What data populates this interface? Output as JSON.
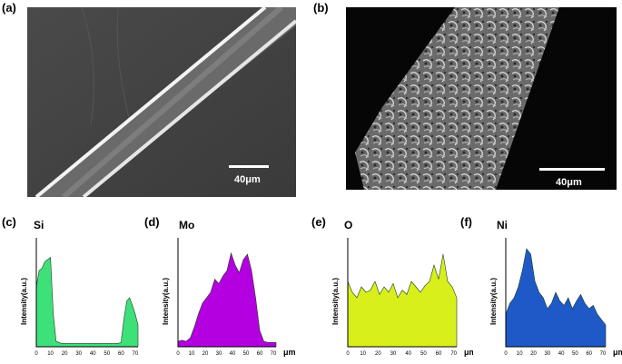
{
  "panels": {
    "a": {
      "label": "(a)",
      "scale_bar": "40μm"
    },
    "b": {
      "label": "(b)",
      "scale_bar": "40μm"
    },
    "c": {
      "label": "(c)",
      "element": "Si",
      "color": "#3ee07a"
    },
    "d": {
      "label": "(d)",
      "element": "Mo",
      "color": "#b400e0"
    },
    "e": {
      "label": "(e)",
      "element": "O",
      "color": "#d8ef1c"
    },
    "f": {
      "label": "(f)",
      "element": "Ni",
      "color": "#1f59c8"
    }
  },
  "chart_data": [
    {
      "type": "area",
      "ylabel": "Intensity(a.u.)",
      "xlabel": "μm",
      "x_ticks": [
        "0",
        "10",
        "20",
        "30",
        "40",
        "50",
        "60",
        "70"
      ],
      "xlim": [
        0,
        72
      ],
      "ylim": [
        0,
        1
      ],
      "x": [
        0,
        2,
        4,
        6,
        8,
        10,
        12,
        14,
        16,
        18,
        20,
        25,
        30,
        35,
        40,
        45,
        50,
        55,
        58,
        60,
        62,
        64,
        66,
        68,
        70,
        72
      ],
      "values": [
        0.55,
        0.7,
        0.72,
        0.78,
        0.8,
        0.82,
        0.3,
        0.05,
        0.04,
        0.03,
        0.03,
        0.03,
        0.03,
        0.03,
        0.03,
        0.03,
        0.03,
        0.03,
        0.03,
        0.04,
        0.25,
        0.42,
        0.45,
        0.38,
        0.3,
        0.2
      ]
    },
    {
      "type": "area",
      "ylabel": "Intensity(a.u.)",
      "xlabel": "μm",
      "x_ticks": [
        "0",
        "10",
        "20",
        "30",
        "40",
        "50",
        "60",
        "70"
      ],
      "xlim": [
        0,
        72
      ],
      "ylim": [
        0,
        1
      ],
      "x": [
        0,
        3,
        6,
        9,
        12,
        15,
        18,
        21,
        24,
        27,
        30,
        33,
        36,
        39,
        42,
        45,
        48,
        51,
        54,
        57,
        60,
        63,
        66,
        69,
        72
      ],
      "values": [
        0.05,
        0.06,
        0.05,
        0.08,
        0.18,
        0.3,
        0.4,
        0.45,
        0.5,
        0.62,
        0.58,
        0.65,
        0.7,
        0.86,
        0.75,
        0.68,
        0.8,
        0.85,
        0.7,
        0.45,
        0.15,
        0.05,
        0.04,
        0.04,
        0.04
      ]
    },
    {
      "type": "area",
      "ylabel": "Intensity(a.u.)",
      "xlabel": "μm",
      "x_ticks": [
        "0",
        "10",
        "20",
        "30",
        "40",
        "50",
        "60",
        "70"
      ],
      "xlim": [
        0,
        72
      ],
      "ylim": [
        0,
        1
      ],
      "x": [
        0,
        3,
        6,
        9,
        12,
        15,
        18,
        21,
        24,
        27,
        30,
        33,
        36,
        39,
        42,
        45,
        48,
        51,
        54,
        57,
        60,
        63,
        66,
        69,
        72
      ],
      "values": [
        0.6,
        0.5,
        0.45,
        0.55,
        0.5,
        0.52,
        0.6,
        0.48,
        0.55,
        0.5,
        0.58,
        0.45,
        0.52,
        0.48,
        0.6,
        0.55,
        0.5,
        0.56,
        0.6,
        0.75,
        0.62,
        0.85,
        0.6,
        0.55,
        0.45
      ]
    },
    {
      "type": "area",
      "ylabel": "Intensity(a.u.)",
      "xlabel": "μm",
      "x_ticks": [
        "0",
        "10",
        "20",
        "30",
        "40",
        "50",
        "60",
        "70"
      ],
      "xlim": [
        0,
        72
      ],
      "ylim": [
        0,
        1
      ],
      "x": [
        0,
        3,
        6,
        9,
        12,
        15,
        18,
        21,
        24,
        27,
        30,
        33,
        36,
        39,
        42,
        45,
        48,
        51,
        54,
        57,
        60,
        63,
        66,
        69,
        72
      ],
      "values": [
        0.3,
        0.4,
        0.45,
        0.55,
        0.7,
        0.9,
        0.85,
        0.6,
        0.5,
        0.45,
        0.35,
        0.4,
        0.5,
        0.42,
        0.38,
        0.45,
        0.35,
        0.42,
        0.48,
        0.4,
        0.35,
        0.38,
        0.3,
        0.25,
        0.2
      ]
    }
  ]
}
